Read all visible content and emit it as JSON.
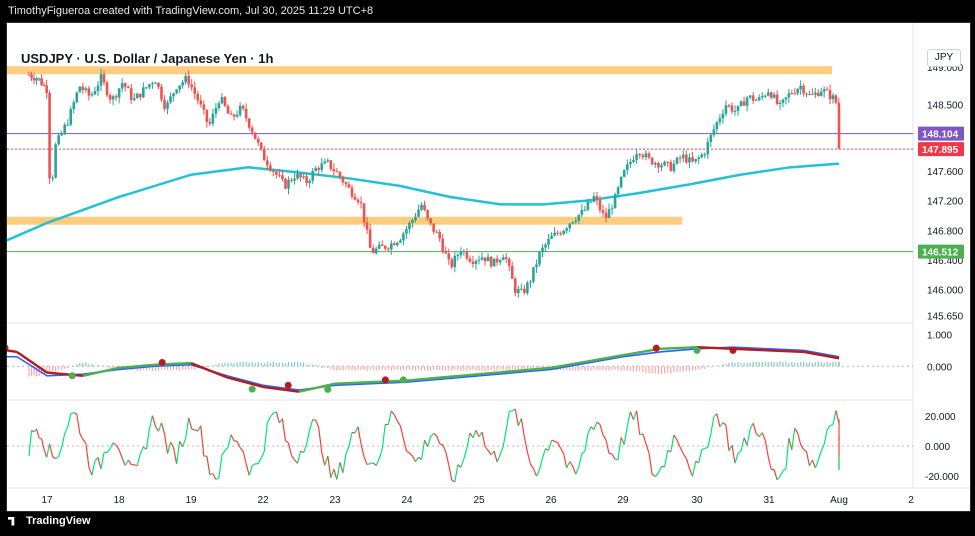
{
  "header": {
    "credit": "TimothyFigueroa created with TradingView.com, Jul 30, 2025 11:29 UTC+8"
  },
  "symbol": {
    "title": "USDJPY · U.S. Dollar / Japanese Yen · 1h",
    "currency_button": "JPY"
  },
  "footer": {
    "brand": "TradingView"
  },
  "colors": {
    "bull": "#26a69a",
    "bear": "#ef5350",
    "ma": "#22c1d6",
    "zone": "#ffcc80",
    "last_price": "#f23645",
    "purple_line": "#7e57c2",
    "green_line": "#4caf50",
    "macd_line": "#2962ff",
    "signal_up": "#4caf50",
    "signal_down": "#b71c1c",
    "rsi_up": "#00e676",
    "rsi_down": "#f44336"
  },
  "chart_data": {
    "type": "candlestick",
    "title": "USDJPY · U.S. Dollar / Japanese Yen · 1h",
    "x_ticks": [
      "17",
      "18",
      "19",
      "22",
      "23",
      "24",
      "25",
      "26",
      "29",
      "30",
      "31",
      "Aug",
      "2"
    ],
    "y_ticks": [
      "149.000",
      "148.500",
      "148.104",
      "147.895",
      "147.600",
      "147.200",
      "146.800",
      "146.512",
      "146.400",
      "146.000",
      "145.650"
    ],
    "y_range": [
      145.55,
      149.3
    ],
    "price_labels": {
      "purple": "148.104",
      "last": "147.895",
      "green": "146.512"
    },
    "horizontal_lines": [
      148.104,
      147.895,
      146.512
    ],
    "zones": [
      {
        "from_day": "16",
        "to_day": "30",
        "price": 148.96
      },
      {
        "from_day": "16",
        "to_day": "26",
        "price": 146.93
      }
    ],
    "price_path": [
      [
        16.7,
        148.9
      ],
      [
        16.85,
        148.85
      ],
      [
        17.0,
        148.7
      ],
      [
        17.05,
        147.1
      ],
      [
        17.1,
        147.9
      ],
      [
        17.3,
        148.3
      ],
      [
        17.45,
        148.75
      ],
      [
        17.6,
        148.6
      ],
      [
        17.75,
        148.85
      ],
      [
        17.9,
        148.55
      ],
      [
        18.05,
        148.8
      ],
      [
        18.2,
        148.55
      ],
      [
        18.35,
        148.7
      ],
      [
        18.5,
        148.85
      ],
      [
        18.65,
        148.45
      ],
      [
        18.8,
        148.75
      ],
      [
        18.95,
        148.85
      ],
      [
        19.1,
        148.55
      ],
      [
        19.25,
        148.2
      ],
      [
        19.4,
        148.6
      ],
      [
        19.55,
        148.3
      ],
      [
        19.7,
        148.45
      ],
      [
        19.85,
        148.15
      ],
      [
        20.0,
        147.8
      ],
      [
        20.15,
        147.6
      ],
      [
        20.3,
        147.4
      ],
      [
        20.45,
        147.55
      ],
      [
        20.6,
        147.45
      ],
      [
        20.75,
        147.65
      ],
      [
        20.9,
        147.7
      ],
      [
        21.05,
        147.55
      ],
      [
        21.2,
        147.35
      ],
      [
        21.35,
        147.2
      ],
      [
        21.5,
        146.5
      ],
      [
        21.6,
        146.55
      ],
      [
        21.75,
        146.6
      ],
      [
        21.9,
        146.7
      ],
      [
        22.05,
        146.9
      ],
      [
        22.2,
        147.15
      ],
      [
        22.3,
        146.9
      ],
      [
        22.45,
        146.7
      ],
      [
        22.6,
        146.3
      ],
      [
        22.75,
        146.55
      ],
      [
        22.9,
        146.4
      ],
      [
        23.05,
        146.45
      ],
      [
        23.2,
        146.35
      ],
      [
        23.35,
        146.5
      ],
      [
        23.5,
        146.0
      ],
      [
        23.6,
        145.95
      ],
      [
        23.7,
        146.1
      ],
      [
        23.85,
        146.5
      ],
      [
        24.0,
        146.7
      ],
      [
        24.15,
        146.8
      ],
      [
        24.3,
        146.95
      ],
      [
        24.45,
        147.05
      ],
      [
        24.6,
        147.25
      ],
      [
        24.75,
        146.95
      ],
      [
        24.9,
        147.25
      ],
      [
        25.0,
        147.55
      ],
      [
        25.2,
        147.9
      ],
      [
        25.35,
        147.75
      ],
      [
        25.5,
        147.7
      ],
      [
        25.65,
        147.65
      ],
      [
        25.8,
        147.8
      ],
      [
        25.95,
        147.7
      ],
      [
        26.1,
        147.85
      ],
      [
        26.25,
        148.2
      ],
      [
        26.4,
        148.5
      ],
      [
        26.55,
        148.4
      ],
      [
        26.7,
        148.6
      ],
      [
        26.85,
        148.55
      ],
      [
        27.0,
        148.7
      ],
      [
        27.15,
        148.45
      ],
      [
        27.3,
        148.65
      ],
      [
        27.45,
        148.75
      ],
      [
        27.6,
        148.6
      ],
      [
        27.75,
        148.7
      ],
      [
        27.9,
        148.6
      ],
      [
        28.05,
        148.4
      ],
      [
        28.2,
        148.1
      ],
      [
        28.25,
        147.9
      ]
    ],
    "ma_path": [
      [
        16.0,
        146.55
      ],
      [
        17.0,
        146.9
      ],
      [
        18.0,
        147.25
      ],
      [
        19.0,
        147.55
      ],
      [
        19.8,
        147.65
      ],
      [
        20.5,
        147.58
      ],
      [
        21.2,
        147.5
      ],
      [
        21.9,
        147.4
      ],
      [
        22.6,
        147.25
      ],
      [
        23.3,
        147.15
      ],
      [
        23.9,
        147.15
      ],
      [
        24.5,
        147.2
      ],
      [
        25.2,
        147.3
      ],
      [
        25.9,
        147.42
      ],
      [
        26.6,
        147.55
      ],
      [
        27.3,
        147.65
      ],
      [
        28.0,
        147.7
      ]
    ],
    "macd_path": [
      [
        16.0,
        0.3
      ],
      [
        16.5,
        0.3
      ],
      [
        17.0,
        -0.3
      ],
      [
        17.5,
        -0.25
      ],
      [
        18.0,
        -0.1
      ],
      [
        18.5,
        0.0
      ],
      [
        19.0,
        0.05
      ],
      [
        19.5,
        -0.3
      ],
      [
        20.0,
        -0.6
      ],
      [
        20.5,
        -0.75
      ],
      [
        21.0,
        -0.6
      ],
      [
        21.5,
        -0.55
      ],
      [
        22.0,
        -0.5
      ],
      [
        22.5,
        -0.4
      ],
      [
        23.0,
        -0.3
      ],
      [
        23.5,
        -0.2
      ],
      [
        24.0,
        -0.1
      ],
      [
        24.5,
        0.1
      ],
      [
        25.0,
        0.3
      ],
      [
        25.5,
        0.45
      ],
      [
        26.0,
        0.55
      ],
      [
        26.5,
        0.6
      ],
      [
        27.0,
        0.55
      ],
      [
        27.5,
        0.5
      ],
      [
        28.0,
        0.3
      ]
    ],
    "signal_path": [
      [
        16.0,
        0.6
      ],
      [
        16.5,
        0.45
      ],
      [
        17.0,
        -0.2
      ],
      [
        17.5,
        -0.3
      ],
      [
        18.0,
        -0.05
      ],
      [
        18.5,
        0.05
      ],
      [
        19.0,
        0.1
      ],
      [
        19.5,
        -0.35
      ],
      [
        20.0,
        -0.65
      ],
      [
        20.5,
        -0.8
      ],
      [
        21.0,
        -0.55
      ],
      [
        21.5,
        -0.5
      ],
      [
        22.0,
        -0.45
      ],
      [
        22.5,
        -0.35
      ],
      [
        23.0,
        -0.25
      ],
      [
        23.5,
        -0.15
      ],
      [
        24.0,
        -0.05
      ],
      [
        24.5,
        0.15
      ],
      [
        25.0,
        0.35
      ],
      [
        25.5,
        0.55
      ],
      [
        26.0,
        0.6
      ],
      [
        26.5,
        0.55
      ],
      [
        27.0,
        0.5
      ],
      [
        27.5,
        0.45
      ],
      [
        28.0,
        0.25
      ]
    ],
    "macd_dots": [
      {
        "x": 16.3,
        "y": 0.58,
        "c": "down"
      },
      {
        "x": 17.35,
        "y": -0.3,
        "c": "up"
      },
      {
        "x": 18.6,
        "y": 0.12,
        "c": "down"
      },
      {
        "x": 19.85,
        "y": -0.72,
        "c": "up"
      },
      {
        "x": 20.35,
        "y": -0.6,
        "c": "down"
      },
      {
        "x": 20.9,
        "y": -0.73,
        "c": "up"
      },
      {
        "x": 21.7,
        "y": -0.43,
        "c": "down"
      },
      {
        "x": 21.95,
        "y": -0.43,
        "c": "up"
      },
      {
        "x": 25.45,
        "y": 0.57,
        "c": "down"
      },
      {
        "x": 26.0,
        "y": 0.5,
        "c": "up"
      },
      {
        "x": 26.5,
        "y": 0.5,
        "c": "down"
      }
    ],
    "rsi_ticks": [
      "20.000",
      "0.000",
      "-20.000"
    ],
    "macd_ticks": [
      "1.000",
      "0.000"
    ]
  }
}
